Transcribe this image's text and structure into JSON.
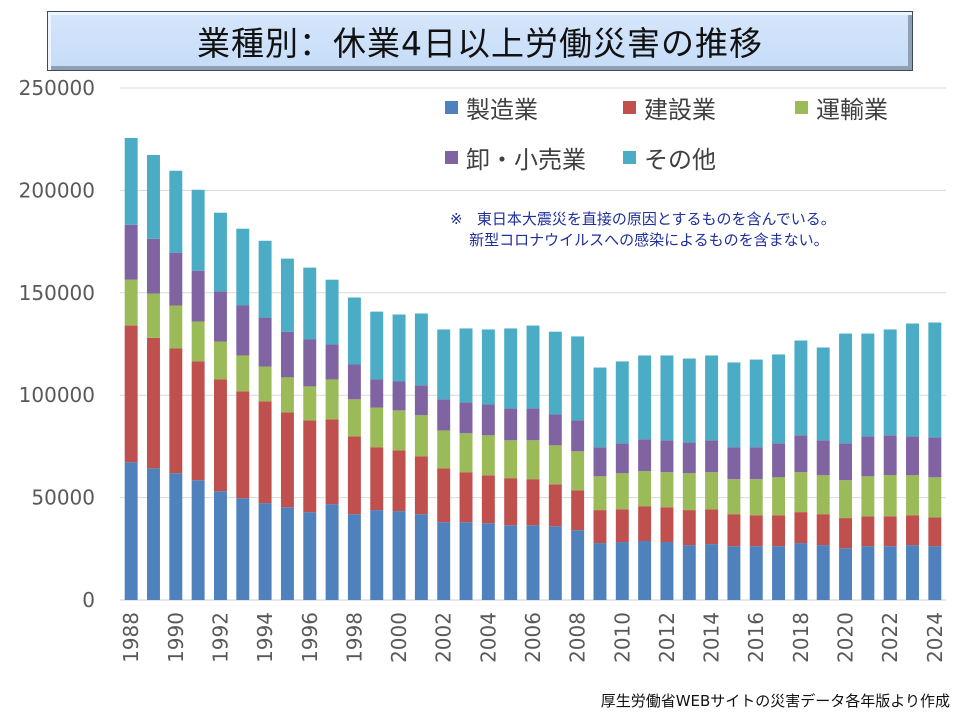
{
  "title": "業種別：休業4日以上労働災害の推移",
  "note": {
    "mark": "※",
    "lines": [
      "東日本大震災を直接の原因とするものを含んでいる。",
      "新型コロナウイルスへの感染によるものを含まない。"
    ]
  },
  "source": "厚生労働省WEBサイトの災害データ各年版より作成",
  "chart_data": {
    "type": "bar",
    "stacked": true,
    "title": "業種別：休業4日以上労働災害の推移",
    "xlabel": "",
    "ylabel": "",
    "ylim": [
      0,
      250000
    ],
    "yticks": [
      0,
      50000,
      100000,
      150000,
      200000,
      250000
    ],
    "ytick_labels": [
      "0",
      "50000",
      "100000",
      "150000",
      "200000",
      "250000"
    ],
    "grid": true,
    "legend_position": "top-right",
    "categories": [
      "1988",
      "1989",
      "1990",
      "1991",
      "1992",
      "1993",
      "1994",
      "1995",
      "1996",
      "1997",
      "1998",
      "1999",
      "2000",
      "2001",
      "2002",
      "2003",
      "2004",
      "2005",
      "2006",
      "2007",
      "2008",
      "2009",
      "2010",
      "2011",
      "2012",
      "2013",
      "2014",
      "2015",
      "2016",
      "2017",
      "2018",
      "2019",
      "2020",
      "2021",
      "2022",
      "2023",
      "2024"
    ],
    "xtick_labels": [
      "1988",
      "1990",
      "1992",
      "1994",
      "1996",
      "1998",
      "2000",
      "2002",
      "2004",
      "2006",
      "2008",
      "2010",
      "2012",
      "2014",
      "2016",
      "2018",
      "2020",
      "2022",
      "2024"
    ],
    "series": [
      {
        "name": "製造業",
        "color": "#4F81BD",
        "values": [
          67300,
          64300,
          61900,
          58500,
          53100,
          49700,
          47300,
          45300,
          42900,
          46800,
          41900,
          43900,
          43400,
          41900,
          38000,
          38000,
          37500,
          36500,
          36500,
          36000,
          34100,
          27800,
          28300,
          28800,
          28300,
          26800,
          27300,
          26300,
          26300,
          26300,
          27800,
          26800,
          25300,
          26300,
          26300,
          26800,
          26300
        ]
      },
      {
        "name": "建設業",
        "color": "#C0504D",
        "values": [
          66700,
          63700,
          60900,
          58000,
          54600,
          52200,
          49700,
          46300,
          44800,
          41400,
          38000,
          30700,
          29700,
          28300,
          26300,
          24400,
          23400,
          23000,
          22500,
          20500,
          19500,
          16100,
          16000,
          17000,
          17000,
          17100,
          17000,
          15600,
          15100,
          15100,
          15100,
          15100,
          14700,
          14600,
          14600,
          14600,
          14100
        ]
      },
      {
        "name": "運輸業",
        "color": "#9BBB59",
        "values": [
          22400,
          21600,
          21000,
          19500,
          18500,
          17500,
          17000,
          17100,
          16600,
          19500,
          18100,
          19400,
          19500,
          20000,
          18500,
          19000,
          19500,
          18500,
          19000,
          19000,
          19000,
          16500,
          17600,
          17100,
          17100,
          18000,
          18100,
          17100,
          17600,
          18500,
          19500,
          19000,
          18500,
          19500,
          20000,
          19500,
          19500
        ]
      },
      {
        "name": "卸・小売業",
        "color": "#8064A2",
        "values": [
          26800,
          26800,
          25800,
          24800,
          24400,
          24400,
          23900,
          22300,
          22900,
          17100,
          17000,
          13700,
          14100,
          14600,
          15200,
          15100,
          15100,
          15600,
          15600,
          15100,
          15100,
          14200,
          14600,
          15600,
          15600,
          15100,
          15600,
          15600,
          15600,
          16600,
          18000,
          17100,
          18000,
          19500,
          19500,
          19000,
          19500
        ]
      },
      {
        "name": "その他",
        "color": "#4BACC6",
        "values": [
          42400,
          40900,
          40000,
          39500,
          38500,
          37500,
          37500,
          35700,
          35100,
          31600,
          32700,
          33100,
          32700,
          35100,
          34100,
          36100,
          36600,
          39000,
          40400,
          40400,
          41000,
          38900,
          40000,
          40900,
          41400,
          40900,
          41400,
          41400,
          42800,
          43400,
          46300,
          45300,
          53600,
          50200,
          51700,
          55100,
          56100
        ]
      }
    ]
  }
}
